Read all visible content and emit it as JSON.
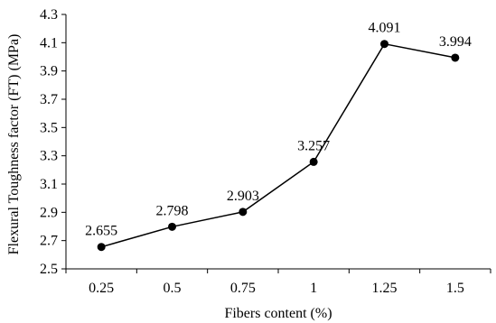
{
  "chart_data": {
    "type": "line",
    "title": "",
    "xlabel": "Fibers content (%)",
    "ylabel": "Flexural Toughness factor (FT) (MPa)",
    "categories": [
      "0.25",
      "0.5",
      "0.75",
      "1",
      "1.25",
      "1.5"
    ],
    "series": [
      {
        "values": [
          2.655,
          2.798,
          2.903,
          3.257,
          4.091,
          3.994
        ],
        "labels": [
          "2.655",
          "2.798",
          "2.903",
          "3.257",
          "4.091",
          "3.994"
        ]
      }
    ],
    "ylim": [
      2.5,
      4.3
    ],
    "yticks": [
      "2.5",
      "2.7",
      "2.9",
      "3.1",
      "3.3",
      "3.5",
      "3.7",
      "3.9",
      "4.1",
      "4.3"
    ],
    "grid": false,
    "legend": "none",
    "colors": {
      "line": "#000000",
      "marker": "#000000",
      "axis": "#000000",
      "background": "#ffffff"
    }
  }
}
